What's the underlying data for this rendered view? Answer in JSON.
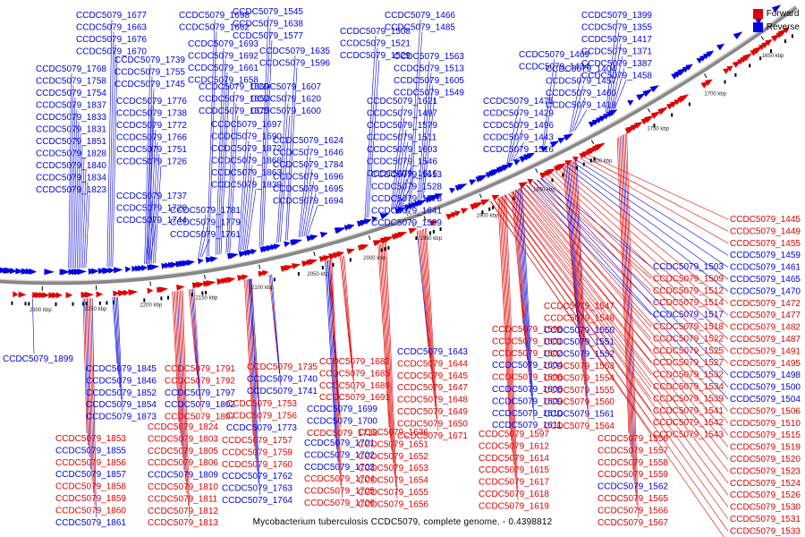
{
  "colors": {
    "forward": "#e00000",
    "reverse": "#0000e0",
    "backbone": "#888888"
  },
  "legend": {
    "forward": "Forward",
    "reverse": "Reverse"
  },
  "caption": "Mycobacterium tuberculosis CCDC5079, complete genome. - 0.4398812",
  "ticks": [
    "1650 kbp",
    "1700 kbp",
    "1750 kbp",
    "1800 kbp",
    "1850 kbp",
    "1900 kbp",
    "1950 kbp",
    "2000 kbp",
    "2050 kbp",
    "2100 kbp",
    "2150 kbp",
    "2200 kbp",
    "2250 kbp",
    "2300 kbp"
  ],
  "reverse_labels": [
    "CCDC5079_1399",
    "CCDC5079_1355",
    "CCDC5079_1417",
    "CCDC5079_1371",
    "CCDC5079_1387",
    "CCDC5079_1458",
    "CCDC5079_1469",
    "CCDC5079_1434",
    "CCDC5079_1404",
    "CCDC5079_1457",
    "CCDC5079_1460",
    "CCDC5079_1418",
    "CCDC5079_1475",
    "CCDC5079_1429",
    "CCDC5079_1496",
    "CCDC5079_1443",
    "CCDC5079_1516",
    "CCDC5079_1466",
    "CCDC5079_1485",
    "CCDC5079_1508",
    "CCDC5079_1521",
    "CCDC5079_1529",
    "CCDC5079_1563",
    "CCDC5079_1513",
    "CCDC5079_1605",
    "CCDC5079_1549",
    "CCDC5079_1621",
    "CCDC5079_1497",
    "CCDC5079_1579",
    "CCDC5079_1511",
    "CCDC5079_1603",
    "CCDC5079_1546",
    "CCDC5079_1616",
    "CCDC5079_1613",
    "CCDC5079_1528",
    "CCDC5079_1578",
    "CCDC5079_1641",
    "CCDC5079_1599",
    "CCDC5079_1545",
    "CCDC5079_1638",
    "CCDC5079_1577",
    "CCDC5079_1635",
    "CCDC5079_1596",
    "CCDC5079_1607",
    "CCDC5079_1620",
    "CCDC5079_1600",
    "CCDC5079_1624",
    "CCDC5079_1646",
    "CCDC5079_1784",
    "CCDC5079_1696",
    "CCDC5079_1695",
    "CCDC5079_1694",
    "CCDC5079_1677",
    "CCDC5079_1663",
    "CCDC5079_1676",
    "CCDC5079_1670",
    "CCDC5079_1698",
    "CCDC5079_1662",
    "CCDC5079_1693",
    "CCDC5079_1692",
    "CCDC5079_1661",
    "CCDC5079_1658",
    "CCDC5079_1669",
    "CCDC5079_1657",
    "CCDC5079_1675",
    "CCDC5079_1697",
    "CCDC5079_1690",
    "CCDC5079_1872",
    "CCDC5079_1868",
    "CCDC5079_1863",
    "CCDC5079_1839",
    "CCDC5079_1781",
    "CCDC5079_1779",
    "CCDC5079_1761",
    "CCDC5079_1739",
    "CCDC5079_1755",
    "CCDC5079_1745",
    "CCDC5079_1776",
    "CCDC5079_1738",
    "CCDC5079_1772",
    "CCDC5079_1766",
    "CCDC5079_1751",
    "CCDC5079_1726",
    "CCDC5079_1737",
    "CCDC5079_1720",
    "CCDC5079_1744",
    "CCDC5079_1768",
    "CCDC5079_1758",
    "CCDC5079_1754",
    "CCDC5079_1837",
    "CCDC5079_1833",
    "CCDC5079_1831",
    "CCDC5079_1851",
    "CCDC5079_1828",
    "CCDC5079_1840",
    "CCDC5079_1834",
    "CCDC5079_1823",
    "CCDC5079_1796",
    "CCDC5079_1808",
    "CCDC5079_1830",
    "CCDC5079_1829",
    "CCDC5079_1822",
    "CCDC5079_1907",
    "CCDC5079_1901",
    "CCDC5079_1898",
    "CCDC5079_1896",
    "CCDC5079_1904",
    "CCDC5079_1897",
    "CCDC5079_1885",
    "CCDC5079_1862",
    "CCDC5079_1871",
    "CCDC5079_1890",
    "CCDC5079_1888"
  ],
  "bottom_labels": [
    {
      "t": "CCDC5079_1899",
      "s": "r"
    },
    {
      "t": "CCDC5079_1845",
      "s": "r"
    },
    {
      "t": "CCDC5079_1846",
      "s": "r"
    },
    {
      "t": "CCDC5079_1852",
      "s": "r"
    },
    {
      "t": "CCDC5079_1854",
      "s": "r"
    },
    {
      "t": "CCDC5079_1873",
      "s": "r"
    },
    {
      "t": "CCDC5079_1853",
      "s": "f"
    },
    {
      "t": "CCDC5079_1855",
      "s": "r"
    },
    {
      "t": "CCDC5079_1856",
      "s": "f"
    },
    {
      "t": "CCDC5079_1857",
      "s": "r"
    },
    {
      "t": "CCDC5079_1858",
      "s": "f"
    },
    {
      "t": "CCDC5079_1859",
      "s": "f"
    },
    {
      "t": "CCDC5079_1860",
      "s": "f"
    },
    {
      "t": "CCDC5079_1861",
      "s": "r"
    },
    {
      "t": "CCDC5079_1791",
      "s": "f"
    },
    {
      "t": "CCDC5079_1792",
      "s": "f"
    },
    {
      "t": "CCDC5079_1797",
      "s": "r"
    },
    {
      "t": "CCDC5079_1802",
      "s": "r"
    },
    {
      "t": "CCDC5079_1807",
      "s": "f"
    },
    {
      "t": "CCDC5079_1824",
      "s": "f"
    },
    {
      "t": "CCDC5079_1803",
      "s": "f"
    },
    {
      "t": "CCDC5079_1805",
      "s": "f"
    },
    {
      "t": "CCDC5079_1806",
      "s": "f"
    },
    {
      "t": "CCDC5079_1809",
      "s": "r"
    },
    {
      "t": "CCDC5079_1810",
      "s": "f"
    },
    {
      "t": "CCDC5079_1811",
      "s": "f"
    },
    {
      "t": "CCDC5079_1812",
      "s": "f"
    },
    {
      "t": "CCDC5079_1813",
      "s": "f"
    },
    {
      "t": "CCDC5079_1735",
      "s": "f"
    },
    {
      "t": "CCDC5079_1740",
      "s": "r"
    },
    {
      "t": "CCDC5079_1741",
      "s": "r"
    },
    {
      "t": "CCDC5079_1753",
      "s": "f"
    },
    {
      "t": "CCDC5079_1756",
      "s": "f"
    },
    {
      "t": "CCDC5079_1773",
      "s": "r"
    },
    {
      "t": "CCDC5079_1757",
      "s": "f"
    },
    {
      "t": "CCDC5079_1759",
      "s": "f"
    },
    {
      "t": "CCDC5079_1760",
      "s": "f"
    },
    {
      "t": "CCDC5079_1762",
      "s": "r"
    },
    {
      "t": "CCDC5079_1763",
      "s": "r"
    },
    {
      "t": "CCDC5079_1764",
      "s": "r"
    },
    {
      "t": "CCDC5079_1682",
      "s": "f"
    },
    {
      "t": "CCDC5079_1685",
      "s": "f"
    },
    {
      "t": "CCDC5079_1689",
      "s": "f"
    },
    {
      "t": "CCDC5079_1691",
      "s": "f"
    },
    {
      "t": "CCDC5079_1699",
      "s": "r"
    },
    {
      "t": "CCDC5079_1700",
      "s": "r"
    },
    {
      "t": "CCDC5079_1718",
      "s": "f"
    },
    {
      "t": "CCDC5079_1701",
      "s": "r"
    },
    {
      "t": "CCDC5079_1702",
      "s": "r"
    },
    {
      "t": "CCDC5079_1703",
      "s": "r"
    },
    {
      "t": "CCDC5079_1704",
      "s": "f"
    },
    {
      "t": "CCDC5079_1705",
      "s": "f"
    },
    {
      "t": "CCDC5079_1706",
      "s": "f"
    },
    {
      "t": "CCDC5079_1643",
      "s": "r"
    },
    {
      "t": "CCDC5079_1644",
      "s": "f"
    },
    {
      "t": "CCDC5079_1645",
      "s": "f"
    },
    {
      "t": "CCDC5079_1647",
      "s": "f"
    },
    {
      "t": "CCDC5079_1648",
      "s": "f"
    },
    {
      "t": "CCDC5079_1649",
      "s": "f"
    },
    {
      "t": "CCDC5079_1650",
      "s": "f"
    },
    {
      "t": "CCDC5079_1671",
      "s": "f"
    },
    {
      "t": "CCDC5079_1636",
      "s": "f"
    },
    {
      "t": "CCDC5079_1651",
      "s": "f"
    },
    {
      "t": "CCDC5079_1652",
      "s": "f"
    },
    {
      "t": "CCDC5079_1653",
      "s": "f"
    },
    {
      "t": "CCDC5079_1654",
      "s": "f"
    },
    {
      "t": "CCDC5079_1655",
      "s": "f"
    },
    {
      "t": "CCDC5079_1656",
      "s": "f"
    },
    {
      "t": "CCDC5079_1598",
      "s": "f"
    },
    {
      "t": "CCDC5079_1601",
      "s": "f"
    },
    {
      "t": "CCDC5079_1602",
      "s": "f"
    },
    {
      "t": "CCDC5079_1604",
      "s": "r"
    },
    {
      "t": "CCDC5079_1606",
      "s": "f"
    },
    {
      "t": "CCDC5079_1608",
      "s": "r"
    },
    {
      "t": "CCDC5079_1609",
      "s": "r"
    },
    {
      "t": "CCDC5079_1610",
      "s": "r"
    },
    {
      "t": "CCDC5079_1611",
      "s": "r"
    },
    {
      "t": "CCDC5079_1597",
      "s": "f"
    },
    {
      "t": "CCDC5079_1612",
      "s": "f"
    },
    {
      "t": "CCDC5079_1614",
      "s": "f"
    },
    {
      "t": "CCDC5079_1615",
      "s": "f"
    },
    {
      "t": "CCDC5079_1617",
      "s": "f"
    },
    {
      "t": "CCDC5079_1618",
      "s": "f"
    },
    {
      "t": "CCDC5079_1619",
      "s": "f"
    },
    {
      "t": "CCDC5079_1547",
      "s": "f"
    },
    {
      "t": "CCDC5079_1548",
      "s": "f"
    },
    {
      "t": "CCDC5079_1550",
      "s": "r"
    },
    {
      "t": "CCDC5079_1551",
      "s": "r"
    },
    {
      "t": "CCDC5079_1552",
      "s": "r"
    },
    {
      "t": "CCDC5079_1553",
      "s": "f"
    },
    {
      "t": "CCDC5079_1554",
      "s": "f"
    },
    {
      "t": "CCDC5079_1555",
      "s": "f"
    },
    {
      "t": "CCDC5079_1560",
      "s": "f"
    },
    {
      "t": "CCDC5079_1561",
      "s": "r"
    },
    {
      "t": "CCDC5079_1564",
      "s": "f"
    },
    {
      "t": "CCDC5079_1556",
      "s": "f"
    },
    {
      "t": "CCDC5079_1557",
      "s": "f"
    },
    {
      "t": "CCDC5079_1558",
      "s": "f"
    },
    {
      "t": "CCDC5079_1559",
      "s": "f"
    },
    {
      "t": "CCDC5079_1562",
      "s": "r"
    },
    {
      "t": "CCDC5079_1565",
      "s": "f"
    },
    {
      "t": "CCDC5079_1566",
      "s": "f"
    },
    {
      "t": "CCDC5079_1567",
      "s": "f"
    },
    {
      "t": "CCDC5079_1503",
      "s": "r"
    },
    {
      "t": "CCDC5079_1509",
      "s": "f"
    },
    {
      "t": "CCDC5079_1512",
      "s": "f"
    },
    {
      "t": "CCDC5079_1514",
      "s": "f"
    },
    {
      "t": "CCDC5079_1517",
      "s": "r"
    },
    {
      "t": "CCDC5079_1518",
      "s": "f"
    },
    {
      "t": "CCDC5079_1522",
      "s": "f"
    },
    {
      "t": "CCDC5079_1525",
      "s": "f"
    },
    {
      "t": "CCDC5079_1527",
      "s": "f"
    },
    {
      "t": "CCDC5079_1532",
      "s": "f"
    },
    {
      "t": "CCDC5079_1534",
      "s": "f"
    },
    {
      "t": "CCDC5079_1539",
      "s": "f"
    },
    {
      "t": "CCDC5079_1541",
      "s": "f"
    },
    {
      "t": "CCDC5079_1542",
      "s": "f"
    },
    {
      "t": "CCDC5079_1543",
      "s": "f"
    },
    {
      "t": "CCDC5079_1445",
      "s": "f"
    },
    {
      "t": "CCDC5079_1449",
      "s": "f"
    },
    {
      "t": "CCDC5079_1455",
      "s": "f"
    },
    {
      "t": "CCDC5079_1459",
      "s": "r"
    },
    {
      "t": "CCDC5079_1461",
      "s": "r"
    },
    {
      "t": "CCDC5079_1465",
      "s": "r"
    },
    {
      "t": "CCDC5079_1470",
      "s": "r"
    },
    {
      "t": "CCDC5079_1472",
      "s": "f"
    },
    {
      "t": "CCDC5079_1477",
      "s": "f"
    },
    {
      "t": "CCDC5079_1482",
      "s": "f"
    },
    {
      "t": "CCDC5079_1487",
      "s": "f"
    },
    {
      "t": "CCDC5079_1491",
      "s": "f"
    },
    {
      "t": "CCDC5079_1495",
      "s": "f"
    },
    {
      "t": "CCDC5079_1498",
      "s": "r"
    },
    {
      "t": "CCDC5079_1500",
      "s": "r"
    },
    {
      "t": "CCDC5079_1504",
      "s": "r"
    },
    {
      "t": "CCDC5079_1506",
      "s": "f"
    },
    {
      "t": "CCDC5079_1510",
      "s": "f"
    },
    {
      "t": "CCDC5079_1515",
      "s": "f"
    },
    {
      "t": "CCDC5079_1519",
      "s": "f"
    },
    {
      "t": "CCDC5079_1520",
      "s": "f"
    },
    {
      "t": "CCDC5079_1523",
      "s": "f"
    },
    {
      "t": "CCDC5079_1524",
      "s": "f"
    },
    {
      "t": "CCDC5079_1526",
      "s": "f"
    },
    {
      "t": "CCDC5079_1530",
      "s": "f"
    },
    {
      "t": "CCDC5079_1531",
      "s": "f"
    },
    {
      "t": "CCDC5079_1533",
      "s": "f"
    },
    {
      "t": "CCDC5079_1535",
      "s": "f"
    }
  ]
}
